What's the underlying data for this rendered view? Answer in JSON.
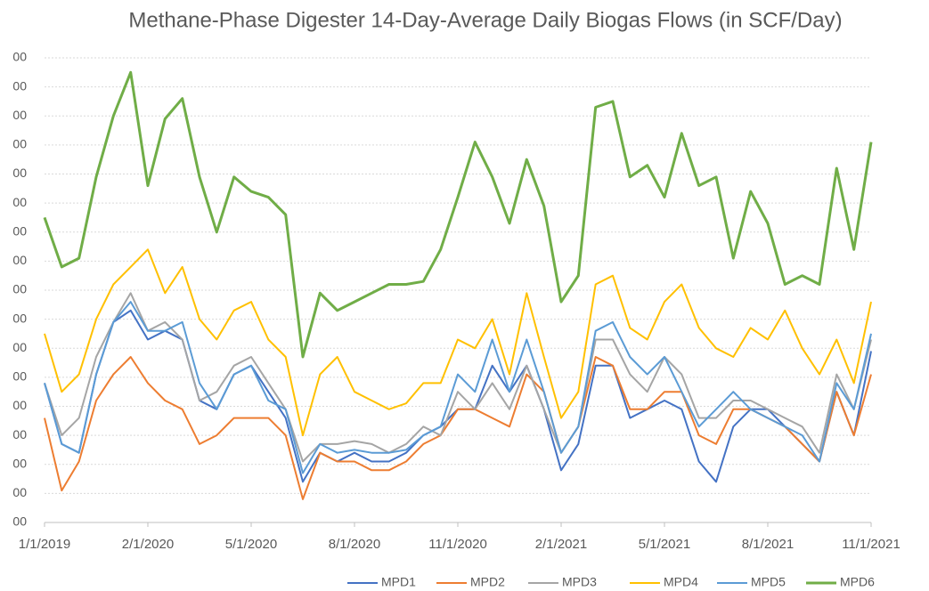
{
  "chart_data": {
    "type": "line",
    "title": "Methane-Phase Digester 14-Day-Average Daily Biogas Flows (in SCF/Day)",
    "categories": [
      "1/1/2019",
      null,
      null,
      null,
      null,
      null,
      "2/1/2020",
      null,
      null,
      null,
      null,
      null,
      "5/1/2020",
      null,
      null,
      null,
      null,
      null,
      "8/1/2020",
      null,
      null,
      null,
      null,
      null,
      "11/1/2020",
      null,
      null,
      null,
      null,
      null,
      "2/1/2021",
      null,
      null,
      null,
      null,
      null,
      "5/1/2021",
      null,
      null,
      null,
      null,
      null,
      "8/1/2021",
      null,
      null,
      null,
      null,
      null,
      "11/1/2021"
    ],
    "series": [
      {
        "name": "MPD1",
        "color": "#4472c4",
        "values": [
          48000,
          27000,
          24000,
          51000,
          69000,
          73000,
          63000,
          66000,
          63000,
          42000,
          39000,
          51000,
          54000,
          45000,
          36000,
          14000,
          24000,
          21000,
          24000,
          21000,
          21000,
          24000,
          30000,
          33000,
          39000,
          39000,
          54000,
          45000,
          54000,
          39000,
          18000,
          27000,
          54000,
          54000,
          36000,
          39000,
          42000,
          39000,
          21000,
          14000,
          33000,
          39000,
          39000,
          33000,
          27000,
          21000,
          45000,
          30000,
          59000
        ]
      },
      {
        "name": "MPD2",
        "color": "#ed7d31",
        "values": [
          36000,
          11000,
          21000,
          42000,
          51000,
          57000,
          48000,
          42000,
          39000,
          27000,
          30000,
          36000,
          36000,
          36000,
          30000,
          8000,
          24000,
          21000,
          21000,
          18000,
          18000,
          21000,
          27000,
          30000,
          39000,
          39000,
          36000,
          33000,
          51000,
          45000,
          24000,
          33000,
          57000,
          54000,
          39000,
          39000,
          45000,
          45000,
          30000,
          27000,
          39000,
          39000,
          36000,
          33000,
          27000,
          21000,
          45000,
          30000,
          51000
        ]
      },
      {
        "name": "MPD3",
        "color": "#a5a5a5",
        "values": [
          48000,
          30000,
          36000,
          57000,
          69000,
          79000,
          66000,
          69000,
          63000,
          42000,
          45000,
          54000,
          57000,
          48000,
          39000,
          21000,
          27000,
          27000,
          28000,
          27000,
          24000,
          27000,
          33000,
          30000,
          45000,
          39000,
          48000,
          39000,
          54000,
          39000,
          24000,
          33000,
          63000,
          63000,
          51000,
          45000,
          57000,
          51000,
          36000,
          36000,
          42000,
          42000,
          39000,
          36000,
          33000,
          24000,
          51000,
          39000,
          63000
        ]
      },
      {
        "name": "MPD4",
        "color": "#ffc000",
        "values": [
          65000,
          45000,
          51000,
          70000,
          82000,
          88000,
          94000,
          79000,
          88000,
          70000,
          63000,
          73000,
          76000,
          63000,
          57000,
          30000,
          51000,
          57000,
          45000,
          42000,
          39000,
          41000,
          48000,
          48000,
          63000,
          60000,
          70000,
          51000,
          79000,
          57000,
          36000,
          45000,
          82000,
          85000,
          67000,
          63000,
          76000,
          82000,
          67000,
          60000,
          57000,
          67000,
          63000,
          73000,
          60000,
          51000,
          63000,
          48000,
          76000
        ]
      },
      {
        "name": "MPD5",
        "color": "#5b9bd5",
        "values": [
          48000,
          27000,
          24000,
          51000,
          69000,
          76000,
          66000,
          66000,
          69000,
          48000,
          39000,
          51000,
          54000,
          42000,
          39000,
          17000,
          27000,
          24000,
          25000,
          24000,
          24000,
          25000,
          30000,
          33000,
          51000,
          45000,
          63000,
          45000,
          63000,
          45000,
          24000,
          33000,
          66000,
          69000,
          57000,
          51000,
          57000,
          45000,
          33000,
          39000,
          45000,
          39000,
          36000,
          33000,
          30000,
          21000,
          48000,
          39000,
          65000
        ]
      },
      {
        "name": "MPD6",
        "color": "#70ad47",
        "values": [
          105000,
          88000,
          91000,
          119000,
          140000,
          155000,
          116000,
          139000,
          146000,
          119000,
          100000,
          119000,
          114000,
          112000,
          106000,
          57000,
          79000,
          73000,
          76000,
          79000,
          82000,
          82000,
          83000,
          94000,
          112000,
          131000,
          119000,
          103000,
          125000,
          109000,
          76000,
          85000,
          143000,
          145000,
          119000,
          123000,
          112000,
          134000,
          116000,
          119000,
          91000,
          114000,
          103000,
          82000,
          85000,
          82000,
          122000,
          94000,
          131000
        ]
      }
    ],
    "ylim": [
      0,
      160000
    ],
    "yticks": [
      {
        "value": 0,
        "label": "00"
      },
      {
        "value": 10000,
        "label": "00"
      },
      {
        "value": 20000,
        "label": "00"
      },
      {
        "value": 30000,
        "label": "00"
      },
      {
        "value": 40000,
        "label": "00"
      },
      {
        "value": 50000,
        "label": "00"
      },
      {
        "value": 60000,
        "label": "00"
      },
      {
        "value": 70000,
        "label": "00"
      },
      {
        "value": 80000,
        "label": "00"
      },
      {
        "value": 90000,
        "label": "00"
      },
      {
        "value": 100000,
        "label": "00"
      },
      {
        "value": 110000,
        "label": "00"
      },
      {
        "value": 120000,
        "label": "00"
      },
      {
        "value": 130000,
        "label": "00"
      },
      {
        "value": 140000,
        "label": "00"
      },
      {
        "value": 150000,
        "label": "00"
      },
      {
        "value": 160000,
        "label": "00"
      }
    ],
    "grid": true,
    "legend": "bottom"
  }
}
